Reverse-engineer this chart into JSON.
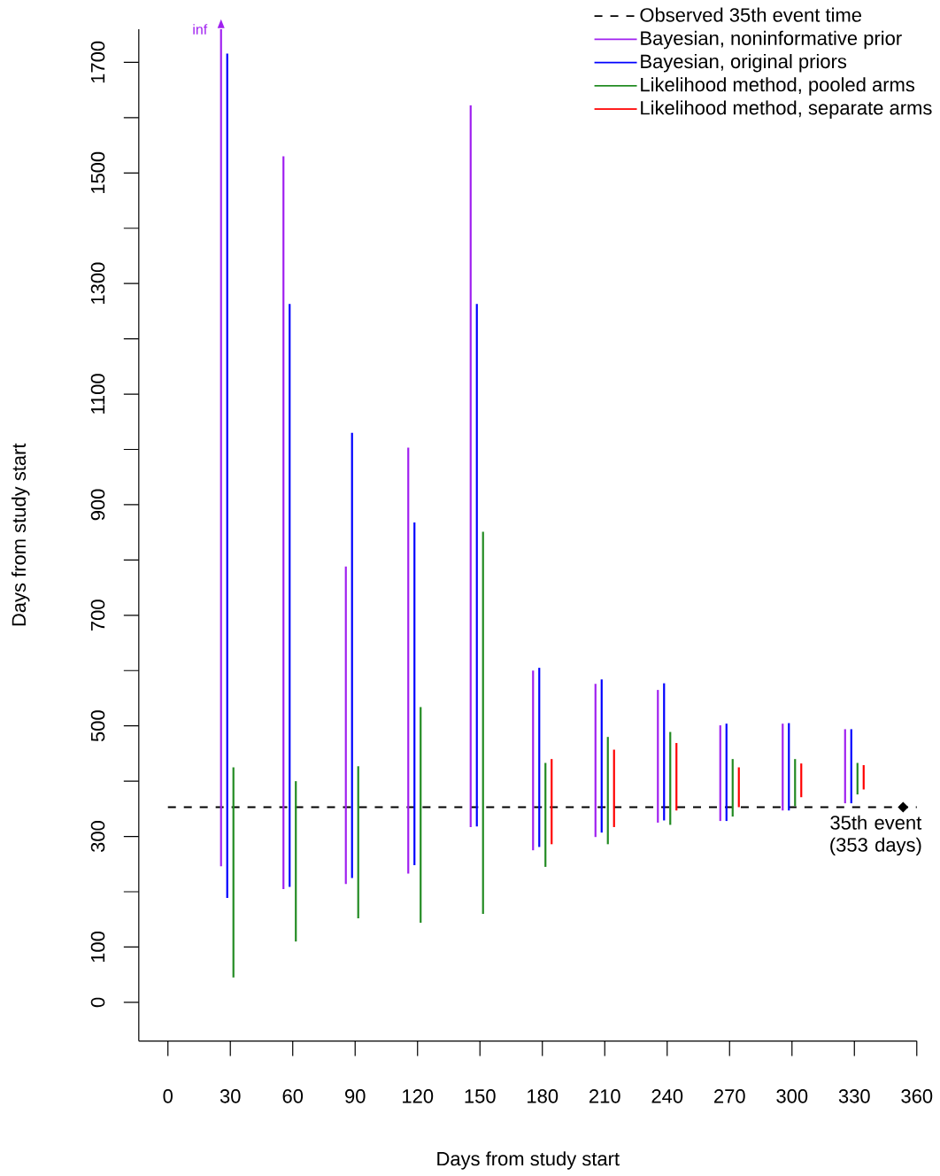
{
  "chart_data": {
    "type": "bar",
    "xlabel": "Days from study start",
    "ylabel": "Days from study start",
    "x": [
      30,
      60,
      90,
      120,
      150,
      180,
      210,
      240,
      270,
      300,
      330
    ],
    "xlim": [
      -14,
      360
    ],
    "xticks": [
      0,
      30,
      60,
      90,
      120,
      150,
      180,
      210,
      240,
      270,
      300,
      330,
      360
    ],
    "ylim": [
      -70,
      1760
    ],
    "yticks": [
      0,
      100,
      300,
      500,
      700,
      900,
      1100,
      1300,
      1500,
      1700
    ],
    "legend": "top right",
    "ref_lines": [
      {
        "axis": "y",
        "value": 353,
        "label": "Observed 35th event time",
        "color": "#000000",
        "line_style": "dashed"
      }
    ],
    "series": [
      {
        "name": "Bayesian, noninformative prior",
        "color": "#a020f0",
        "base": [
          246,
          205,
          214,
          233,
          317,
          275,
          299,
          325,
          328,
          347,
          360
        ],
        "values": [
          1514,
          1325,
          574,
          770,
          1305,
          325,
          277,
          240,
          173,
          157,
          134
        ]
      },
      {
        "name": "Bayesian, original priors",
        "color": "#0000ff",
        "base": [
          189,
          209,
          225,
          248,
          318,
          281,
          307,
          329,
          328,
          347,
          360
        ],
        "values": [
          1527,
          1054,
          805,
          620,
          945,
          324,
          277,
          248,
          176,
          158,
          134
        ]
      },
      {
        "name": "Likelihood method, pooled arms",
        "color": "#228b22",
        "base": [
          45,
          110,
          152,
          144,
          160,
          245,
          286,
          321,
          336,
          355,
          376
        ],
        "values": [
          380,
          290,
          275,
          390,
          691,
          188,
          194,
          168,
          104,
          85,
          57
        ]
      },
      {
        "name": "Likelihood method, separate arms",
        "color": "#ff0000",
        "base": [
          null,
          null,
          null,
          null,
          null,
          286,
          317,
          347,
          353,
          371,
          385
        ],
        "values": [
          null,
          null,
          null,
          null,
          null,
          154,
          140,
          122,
          72,
          61,
          44
        ]
      }
    ],
    "annotations": [
      "inf",
      {
        "text": "35th event (353 days)",
        "x": 353,
        "y": 353
      }
    ]
  }
}
